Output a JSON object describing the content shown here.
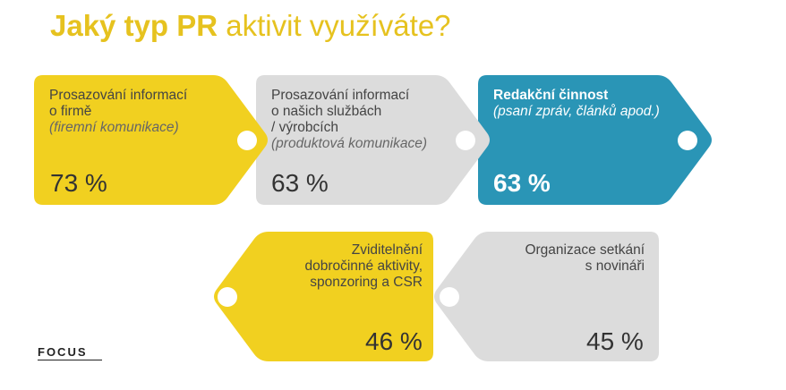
{
  "title": {
    "bold": "Jaký typ PR",
    "light": "aktivit využíváte?"
  },
  "logo": "FOCUS",
  "colors": {
    "yellow": "#f1d020",
    "gray": "#dcdcdc",
    "blue": "#2a95b6",
    "title": "#e6c21f"
  },
  "chart_data": {
    "type": "bar",
    "categories": [
      "Prosazování informací o firmě (firemní komunikace)",
      "Prosazování informací o našich službách / výrobcích (produktová komunikace)",
      "Redakční činnost (psaní zpráv, článků apod.)",
      "Zviditelnění dobročinné aktivity, sponzoring a CSR",
      "Organizace setkání s novináři"
    ],
    "values": [
      73,
      63,
      63,
      46,
      45
    ],
    "unit": "%"
  },
  "tags": [
    {
      "line1": "Prosazování informací",
      "line2": "o firmě",
      "line3": "",
      "sub": "(firemní komunikace)",
      "value": "73 %",
      "color": "yellow"
    },
    {
      "line1": "Prosazování informací",
      "line2": "o našich službách",
      "line3": "/ výrobcích",
      "sub": "(produktová komunikace)",
      "value": "63 %",
      "color": "gray"
    },
    {
      "line1": "Redakční činnost",
      "line2": "",
      "line3": "",
      "sub": "(psaní zpráv, článků apod.)",
      "value": "63 %",
      "color": "blue"
    },
    {
      "line1": "Zviditelnění",
      "line2": "dobročinné aktivity,",
      "line3": "sponzoring a CSR",
      "sub": "",
      "value": "46 %",
      "color": "yellow"
    },
    {
      "line1": "Organizace setkání",
      "line2": "s novináři",
      "line3": "",
      "sub": "",
      "value": "45 %",
      "color": "gray"
    }
  ]
}
